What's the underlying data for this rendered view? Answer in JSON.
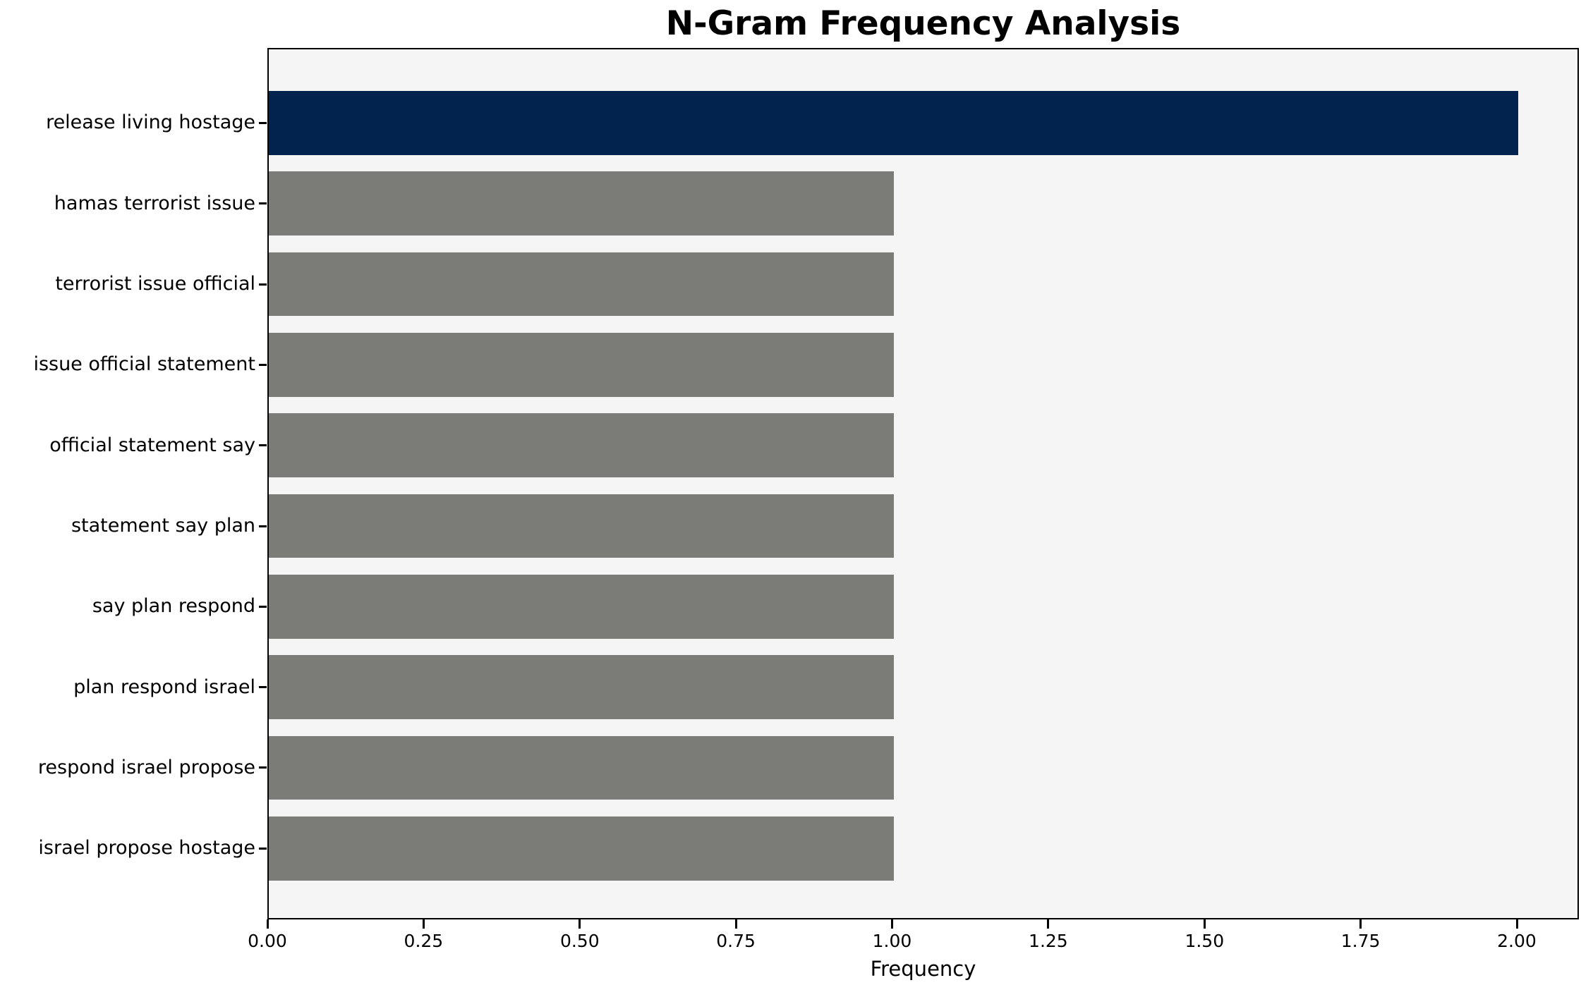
{
  "chart_data": {
    "type": "bar",
    "orientation": "horizontal",
    "title": "N-Gram Frequency Analysis",
    "xlabel": "Frequency",
    "ylabel": "",
    "categories": [
      "release living hostage",
      "hamas terrorist issue",
      "terrorist issue official",
      "issue official statement",
      "official statement say",
      "statement say plan",
      "say plan respond",
      "plan respond israel",
      "respond israel propose",
      "israel propose hostage"
    ],
    "values": [
      2,
      1,
      1,
      1,
      1,
      1,
      1,
      1,
      1,
      1
    ],
    "xlim": [
      0,
      2.1
    ],
    "xticks": [
      0,
      0.25,
      0.5,
      0.75,
      1.0,
      1.25,
      1.5,
      1.75,
      2.0
    ],
    "xtick_labels": [
      "0.00",
      "0.25",
      "0.50",
      "0.75",
      "1.00",
      "1.25",
      "1.50",
      "1.75",
      "2.00"
    ],
    "highlight_index": 0,
    "colors": {
      "highlight_bar": "#02234d",
      "default_bar": "#7b7b77",
      "plot_background": "#f5f5f5",
      "figure_background": "#ffffff",
      "spine": "#000000",
      "text": "#000000"
    },
    "grid": false,
    "legend": null
  }
}
